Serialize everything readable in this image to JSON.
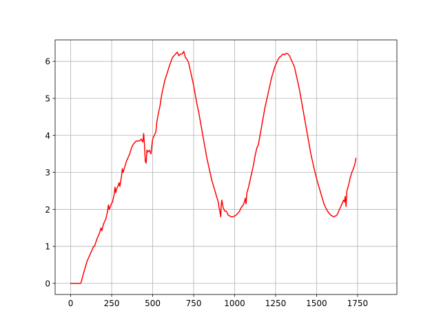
{
  "chart_data": {
    "type": "line",
    "title": "",
    "xlabel": "",
    "ylabel": "",
    "xlim": [
      -95,
      1990
    ],
    "ylim": [
      -0.3,
      6.58
    ],
    "grid": true,
    "xticks": [
      0,
      250,
      500,
      750,
      1000,
      1250,
      1500,
      1750
    ],
    "yticks": [
      0,
      1,
      2,
      3,
      4,
      5,
      6
    ],
    "xtick_labels": [
      "0",
      "250",
      "500",
      "750",
      "1000",
      "1250",
      "1500",
      "1750"
    ],
    "ytick_labels": [
      "0",
      "1",
      "2",
      "3",
      "4",
      "5",
      "6"
    ],
    "series": [
      {
        "color": "#ff0000",
        "points": [
          [
            0,
            0
          ],
          [
            60,
            0
          ],
          [
            65,
            0.05
          ],
          [
            80,
            0.3
          ],
          [
            100,
            0.6
          ],
          [
            120,
            0.8
          ],
          [
            140,
            1.0
          ],
          [
            145,
            1.0
          ],
          [
            160,
            1.2
          ],
          [
            175,
            1.35
          ],
          [
            185,
            1.5
          ],
          [
            190,
            1.42
          ],
          [
            200,
            1.6
          ],
          [
            215,
            1.75
          ],
          [
            225,
            1.95
          ],
          [
            230,
            2.12
          ],
          [
            235,
            2.0
          ],
          [
            245,
            2.12
          ],
          [
            255,
            2.2
          ],
          [
            265,
            2.4
          ],
          [
            270,
            2.6
          ],
          [
            275,
            2.45
          ],
          [
            280,
            2.55
          ],
          [
            290,
            2.65
          ],
          [
            295,
            2.72
          ],
          [
            300,
            2.62
          ],
          [
            310,
            2.9
          ],
          [
            315,
            3.1
          ],
          [
            320,
            3.0
          ],
          [
            330,
            3.15
          ],
          [
            340,
            3.3
          ],
          [
            350,
            3.4
          ],
          [
            360,
            3.5
          ],
          [
            370,
            3.65
          ],
          [
            380,
            3.75
          ],
          [
            390,
            3.8
          ],
          [
            400,
            3.85
          ],
          [
            420,
            3.85
          ],
          [
            430,
            3.9
          ],
          [
            440,
            3.82
          ],
          [
            445,
            4.05
          ],
          [
            450,
            3.75
          ],
          [
            455,
            3.3
          ],
          [
            460,
            3.25
          ],
          [
            465,
            3.6
          ],
          [
            470,
            3.55
          ],
          [
            480,
            3.6
          ],
          [
            490,
            3.5
          ],
          [
            495,
            3.72
          ],
          [
            500,
            3.9
          ],
          [
            510,
            4.0
          ],
          [
            520,
            4.1
          ],
          [
            525,
            4.35
          ],
          [
            535,
            4.6
          ],
          [
            545,
            4.8
          ],
          [
            555,
            5.1
          ],
          [
            565,
            5.3
          ],
          [
            575,
            5.5
          ],
          [
            590,
            5.7
          ],
          [
            600,
            5.85
          ],
          [
            610,
            5.97
          ],
          [
            620,
            6.1
          ],
          [
            630,
            6.15
          ],
          [
            640,
            6.2
          ],
          [
            650,
            6.25
          ],
          [
            660,
            6.15
          ],
          [
            670,
            6.2
          ],
          [
            680,
            6.2
          ],
          [
            690,
            6.27
          ],
          [
            700,
            6.1
          ],
          [
            710,
            6.05
          ],
          [
            720,
            5.95
          ],
          [
            730,
            5.75
          ],
          [
            740,
            5.55
          ],
          [
            750,
            5.35
          ],
          [
            760,
            5.1
          ],
          [
            770,
            4.85
          ],
          [
            780,
            4.65
          ],
          [
            790,
            4.4
          ],
          [
            800,
            4.15
          ],
          [
            810,
            3.9
          ],
          [
            820,
            3.65
          ],
          [
            830,
            3.4
          ],
          [
            840,
            3.2
          ],
          [
            850,
            3.0
          ],
          [
            860,
            2.8
          ],
          [
            870,
            2.65
          ],
          [
            880,
            2.5
          ],
          [
            890,
            2.35
          ],
          [
            900,
            2.2
          ],
          [
            905,
            2.05
          ],
          [
            910,
            1.95
          ],
          [
            915,
            1.8
          ],
          [
            918,
            2.1
          ],
          [
            922,
            2.25
          ],
          [
            930,
            2.05
          ],
          [
            940,
            1.95
          ],
          [
            950,
            1.95
          ],
          [
            960,
            1.85
          ],
          [
            970,
            1.82
          ],
          [
            980,
            1.8
          ],
          [
            990,
            1.8
          ],
          [
            1000,
            1.82
          ],
          [
            1010,
            1.85
          ],
          [
            1020,
            1.9
          ],
          [
            1030,
            1.95
          ],
          [
            1040,
            2.05
          ],
          [
            1050,
            2.1
          ],
          [
            1060,
            2.2
          ],
          [
            1065,
            2.3
          ],
          [
            1070,
            2.15
          ],
          [
            1075,
            2.45
          ],
          [
            1085,
            2.6
          ],
          [
            1095,
            2.8
          ],
          [
            1105,
            3.0
          ],
          [
            1115,
            3.2
          ],
          [
            1125,
            3.45
          ],
          [
            1135,
            3.65
          ],
          [
            1145,
            3.75
          ],
          [
            1155,
            4.0
          ],
          [
            1165,
            4.25
          ],
          [
            1175,
            4.5
          ],
          [
            1185,
            4.75
          ],
          [
            1195,
            4.95
          ],
          [
            1205,
            5.15
          ],
          [
            1215,
            5.35
          ],
          [
            1225,
            5.55
          ],
          [
            1235,
            5.7
          ],
          [
            1245,
            5.85
          ],
          [
            1255,
            5.95
          ],
          [
            1265,
            6.05
          ],
          [
            1275,
            6.12
          ],
          [
            1285,
            6.15
          ],
          [
            1295,
            6.2
          ],
          [
            1305,
            6.18
          ],
          [
            1315,
            6.22
          ],
          [
            1325,
            6.2
          ],
          [
            1335,
            6.15
          ],
          [
            1345,
            6.05
          ],
          [
            1355,
            5.95
          ],
          [
            1365,
            5.85
          ],
          [
            1375,
            5.65
          ],
          [
            1385,
            5.45
          ],
          [
            1395,
            5.25
          ],
          [
            1405,
            5.0
          ],
          [
            1415,
            4.75
          ],
          [
            1425,
            4.5
          ],
          [
            1435,
            4.25
          ],
          [
            1445,
            4.0
          ],
          [
            1455,
            3.75
          ],
          [
            1465,
            3.5
          ],
          [
            1475,
            3.3
          ],
          [
            1485,
            3.1
          ],
          [
            1495,
            2.92
          ],
          [
            1505,
            2.75
          ],
          [
            1515,
            2.6
          ],
          [
            1525,
            2.45
          ],
          [
            1535,
            2.3
          ],
          [
            1545,
            2.15
          ],
          [
            1555,
            2.05
          ],
          [
            1565,
            1.97
          ],
          [
            1575,
            1.9
          ],
          [
            1585,
            1.85
          ],
          [
            1595,
            1.82
          ],
          [
            1605,
            1.8
          ],
          [
            1615,
            1.82
          ],
          [
            1625,
            1.85
          ],
          [
            1635,
            1.95
          ],
          [
            1645,
            2.05
          ],
          [
            1655,
            2.15
          ],
          [
            1665,
            2.25
          ],
          [
            1670,
            2.2
          ],
          [
            1675,
            2.35
          ],
          [
            1680,
            2.08
          ],
          [
            1685,
            2.5
          ],
          [
            1695,
            2.65
          ],
          [
            1705,
            2.85
          ],
          [
            1715,
            3.0
          ],
          [
            1725,
            3.1
          ],
          [
            1735,
            3.25
          ],
          [
            1740,
            3.38
          ]
        ]
      }
    ]
  }
}
